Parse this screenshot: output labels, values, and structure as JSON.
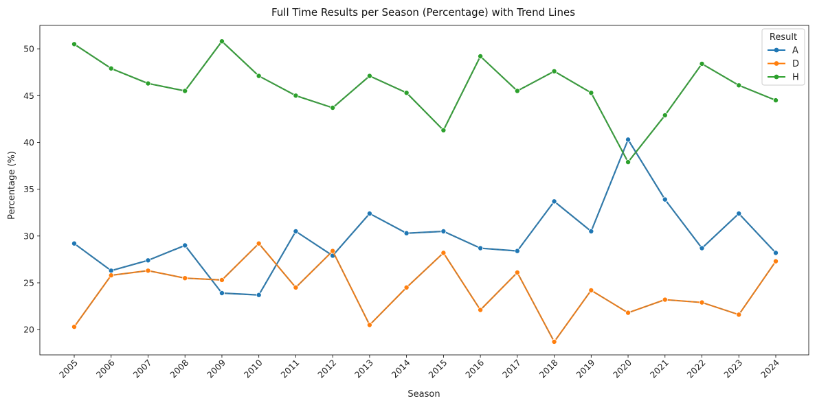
{
  "chart_data": {
    "type": "line",
    "title": "Full Time Results per Season (Percentage) with Trend Lines",
    "xlabel": "Season",
    "ylabel": "Percentage (%)",
    "categories": [
      "2005",
      "2006",
      "2007",
      "2008",
      "2009",
      "2010",
      "2011",
      "2012",
      "2013",
      "2014",
      "2015",
      "2016",
      "2017",
      "2018",
      "2019",
      "2020",
      "2021",
      "2022",
      "2023",
      "2024"
    ],
    "yticks": [
      20,
      25,
      30,
      35,
      40,
      45,
      50
    ],
    "ylim": [
      17.3,
      52.5
    ],
    "legend_title": "Result",
    "legend_position": "top-right",
    "grid": false,
    "series": [
      {
        "name": "A",
        "color": "#1f77b4",
        "values": [
          29.2,
          26.3,
          27.4,
          29.0,
          23.9,
          23.7,
          30.5,
          27.9,
          32.4,
          30.3,
          30.5,
          28.7,
          28.4,
          33.7,
          30.5,
          40.3,
          33.9,
          28.7,
          32.4,
          28.2
        ]
      },
      {
        "name": "D",
        "color": "#ff7f0e",
        "values": [
          20.3,
          25.8,
          26.3,
          25.5,
          25.3,
          29.2,
          24.5,
          28.4,
          20.5,
          24.5,
          28.2,
          22.1,
          26.1,
          18.7,
          24.2,
          21.8,
          23.2,
          22.9,
          21.6,
          27.3
        ]
      },
      {
        "name": "H",
        "color": "#2ca02c",
        "values": [
          50.5,
          47.9,
          46.3,
          45.5,
          50.8,
          47.1,
          45.0,
          43.7,
          47.1,
          45.3,
          41.3,
          49.2,
          45.5,
          47.6,
          45.3,
          37.9,
          42.9,
          48.4,
          46.1,
          44.5
        ]
      }
    ]
  }
}
